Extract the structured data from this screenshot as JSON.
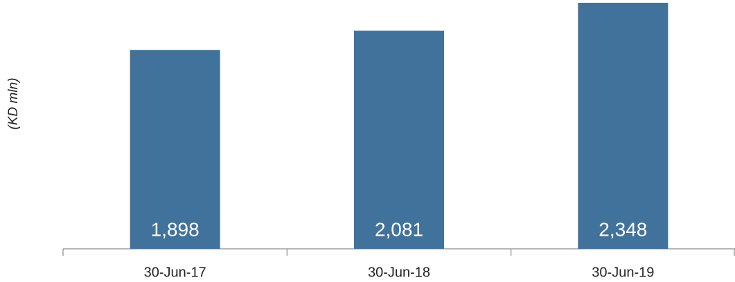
{
  "chart_data": {
    "type": "bar",
    "y_label": "(KD mln)",
    "categories": [
      "30-Jun-17",
      "30-Jun-18",
      "30-Jun-19"
    ],
    "values": [
      1898,
      2081,
      2348
    ],
    "value_labels": [
      "1,898",
      "2,081",
      "2,348"
    ],
    "color": "#41729b"
  }
}
